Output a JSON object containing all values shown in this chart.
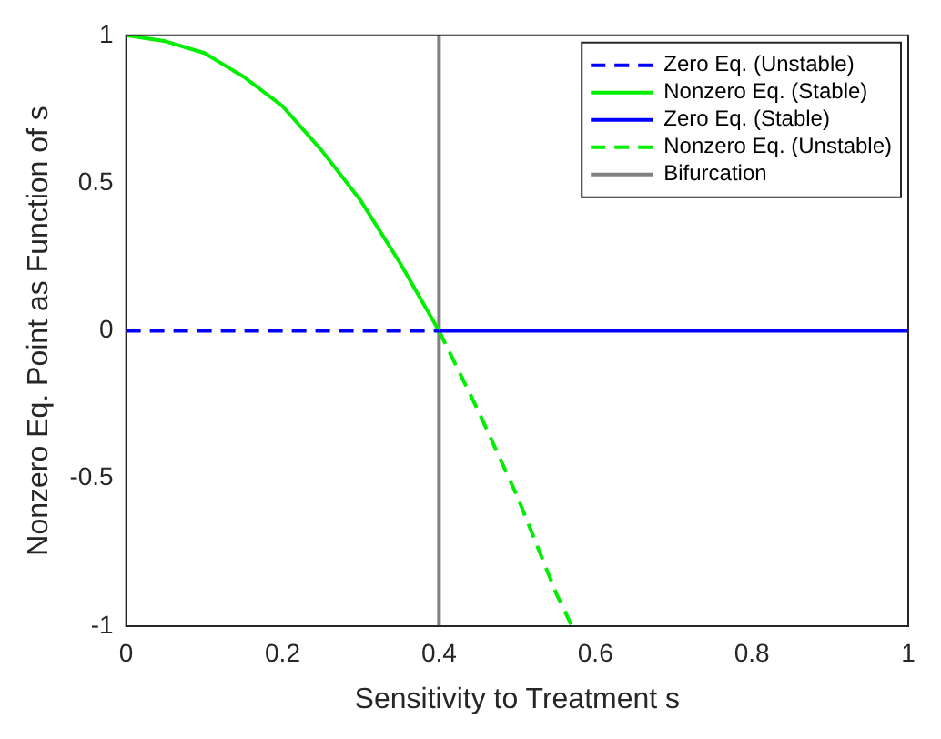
{
  "chart_data": {
    "type": "line",
    "xlabel": "Sensitivity to Treatment s",
    "ylabel": "Nonzero Eq. Point as Function of s",
    "xlim": [
      0,
      1
    ],
    "ylim": [
      -1,
      1
    ],
    "xticks": [
      0,
      0.2,
      0.4,
      0.6,
      0.8,
      1
    ],
    "yticks": [
      -1,
      -0.5,
      0,
      0.5,
      1
    ],
    "grid": false,
    "legend": "top right",
    "marker": "none",
    "series": [
      {
        "name": "Zero Eq. (Unstable)",
        "color": "#0000ff",
        "line_style": "dashed",
        "x": [
          0,
          0.4
        ],
        "values": [
          0,
          0
        ]
      },
      {
        "name": "Nonzero Eq. (Stable)",
        "color": "#00ee00",
        "line_style": "solid",
        "x": [
          0,
          0.05,
          0.1,
          0.15,
          0.2,
          0.25,
          0.3,
          0.35,
          0.4
        ],
        "values": [
          1,
          0.98,
          0.94,
          0.86,
          0.76,
          0.61,
          0.44,
          0.23,
          0
        ]
      },
      {
        "name": "Zero Eq. (Stable)",
        "color": "#0000ff",
        "line_style": "solid",
        "x": [
          0.4,
          1
        ],
        "values": [
          0,
          0
        ]
      },
      {
        "name": "Nonzero Eq. (Unstable)",
        "color": "#00ee00",
        "line_style": "dashed",
        "x": [
          0.4,
          0.45,
          0.5,
          0.55,
          0.57
        ],
        "values": [
          0,
          -0.27,
          -0.56,
          -0.89,
          -1
        ]
      },
      {
        "name": "Bifurcation",
        "color": "#808080",
        "line_style": "solid",
        "x": [
          0.4,
          0.4
        ],
        "values": [
          -1,
          1
        ]
      }
    ]
  }
}
